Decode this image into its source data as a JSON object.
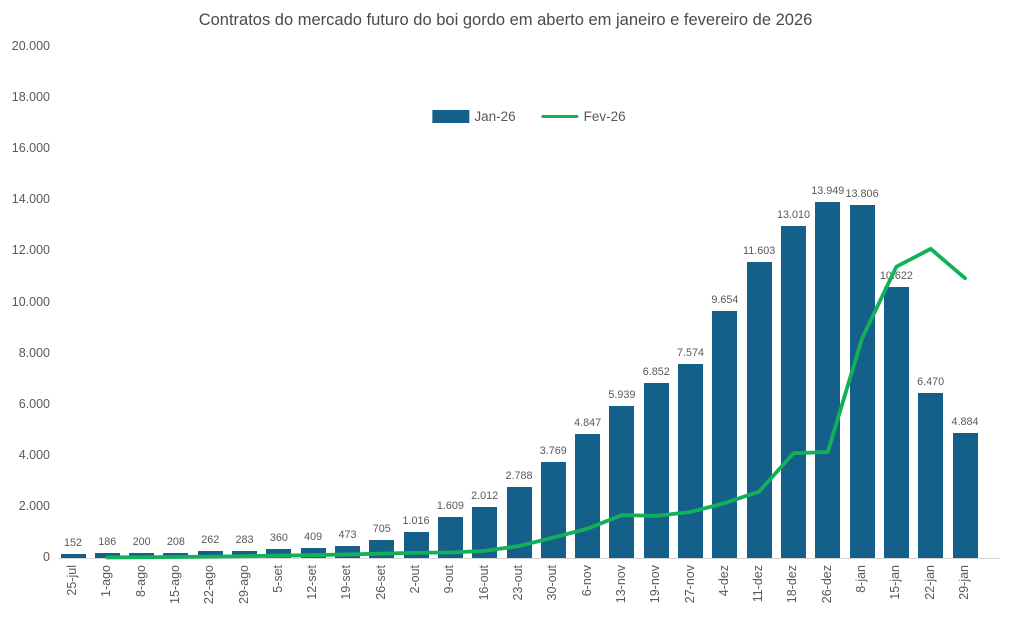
{
  "title": "Contratos do mercado futuro do boi gordo em aberto em janeiro e fevereiro de 2026",
  "colors": {
    "bar": "#15608A",
    "line": "#12B159",
    "text": "#595959",
    "title_text": "#4a4a4a",
    "axis_line": "#d6d6d6"
  },
  "chart_data": {
    "type": "combo",
    "categories": [
      "25-jul",
      "1-ago",
      "8-ago",
      "15-ago",
      "22-ago",
      "29-ago",
      "5-set",
      "12-set",
      "19-set",
      "26-set",
      "2-out",
      "9-out",
      "16-out",
      "23-out",
      "30-out",
      "6-nov",
      "13-nov",
      "19-nov",
      "27-nov",
      "4-dez",
      "11-dez",
      "18-dez",
      "26-dez",
      "8-jan",
      "15-jan",
      "22-jan",
      "29-jan"
    ],
    "series": [
      {
        "name": "Jan-26",
        "type": "bar",
        "color": "#15608A",
        "values": [
          152,
          186,
          200,
          208,
          262,
          283,
          360,
          409,
          473,
          705,
          1016,
          1609,
          2012,
          2788,
          3769,
          4847,
          5939,
          6852,
          7574,
          9654,
          11603,
          13010,
          13949,
          13806,
          10622,
          6470,
          4884
        ],
        "data_labels": [
          "152",
          "186",
          "200",
          "208",
          "262",
          "283",
          "360",
          "409",
          "473",
          "705",
          "1.016",
          "1.609",
          "2.012",
          "2.788",
          "3.769",
          "4.847",
          "5.939",
          "6.852",
          "7.574",
          "9.654",
          "11.603",
          "13.010",
          "13.949",
          "13.806",
          "10.622",
          "6.470",
          "4.884"
        ]
      },
      {
        "name": "Fev-26",
        "type": "line",
        "color": "#12B159",
        "values": [
          null,
          20,
          30,
          40,
          55,
          70,
          90,
          110,
          140,
          170,
          205,
          215,
          280,
          470,
          800,
          1150,
          1680,
          1650,
          1800,
          2150,
          2600,
          4100,
          4150,
          8600,
          11400,
          12100,
          10950
        ]
      }
    ],
    "ylim": [
      0,
      20000
    ],
    "ytick_step": 2000,
    "ytick_labels": [
      "0",
      "2.000",
      "4.000",
      "6.000",
      "8.000",
      "10.000",
      "12.000",
      "14.000",
      "16.000",
      "18.000",
      "20.000"
    ],
    "grid": false,
    "legend_position": "top-center"
  }
}
